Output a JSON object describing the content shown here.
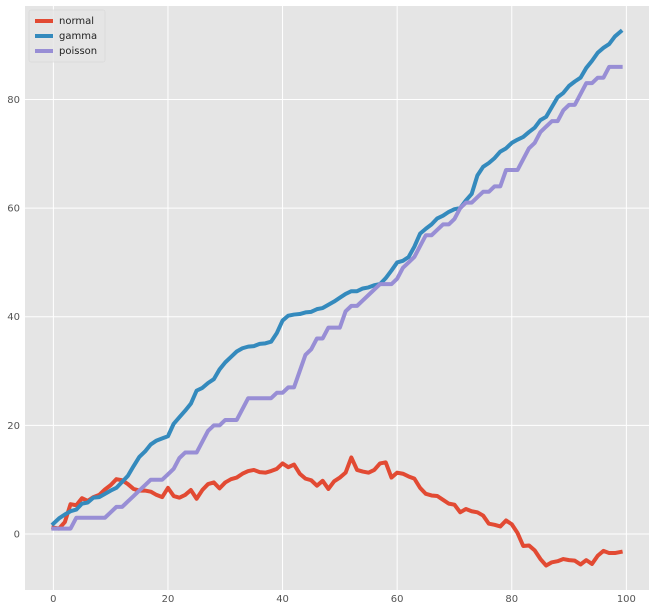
{
  "chart_data": {
    "type": "line",
    "title": "",
    "xlabel": "",
    "ylabel": "",
    "xlim": [
      -4.95,
      103.95
    ],
    "ylim": [
      -10.3,
      97.2
    ],
    "xticks": [
      0,
      20,
      40,
      60,
      80,
      100
    ],
    "yticks": [
      0,
      20,
      40,
      60,
      80
    ],
    "grid": true,
    "legend_position": "top-left",
    "x": [
      0,
      1,
      2,
      3,
      4,
      5,
      6,
      7,
      8,
      9,
      10,
      11,
      12,
      13,
      14,
      15,
      16,
      17,
      18,
      19,
      20,
      21,
      22,
      23,
      24,
      25,
      26,
      27,
      28,
      29,
      30,
      31,
      32,
      33,
      34,
      35,
      36,
      37,
      38,
      39,
      40,
      41,
      42,
      43,
      44,
      45,
      46,
      47,
      48,
      49,
      50,
      51,
      52,
      53,
      54,
      55,
      56,
      57,
      58,
      59,
      60,
      61,
      62,
      63,
      64,
      65,
      66,
      67,
      68,
      69,
      70,
      71,
      72,
      73,
      74,
      75,
      76,
      77,
      78,
      79,
      80,
      81,
      82,
      83,
      84,
      85,
      86,
      87,
      88,
      89,
      90,
      91,
      92,
      93,
      94,
      95,
      96,
      97,
      98,
      99
    ],
    "series": [
      {
        "name": "normal",
        "color": "#E24A33",
        "values": [
          1.2,
          1.0,
          2.2,
          5.5,
          5.3,
          6.6,
          6.1,
          6.8,
          7.2,
          8.2,
          9.0,
          10.1,
          9.9,
          9.2,
          8.3,
          8.0,
          8.0,
          7.8,
          7.2,
          6.8,
          8.5,
          7.0,
          6.7,
          7.2,
          8.1,
          6.5,
          8.1,
          9.2,
          9.5,
          8.4,
          9.5,
          10.1,
          10.4,
          11.1,
          11.6,
          11.8,
          11.4,
          11.3,
          11.6,
          12.0,
          13.0,
          12.3,
          12.8,
          11.1,
          10.2,
          9.9,
          8.9,
          9.8,
          8.3,
          9.7,
          10.4,
          11.3,
          14.1,
          11.8,
          11.5,
          11.3,
          11.8,
          13.0,
          13.2,
          10.4,
          11.3,
          11.1,
          10.6,
          10.2,
          8.5,
          7.4,
          7.1,
          7.0,
          6.3,
          5.6,
          5.4,
          4.0,
          4.6,
          4.2,
          4.0,
          3.4,
          1.9,
          1.7,
          1.4,
          2.5,
          1.8,
          0.2,
          -2.2,
          -2.1,
          -3.0,
          -4.6,
          -5.8,
          -5.2,
          -5.0,
          -4.6,
          -4.8,
          -4.9,
          -5.6,
          -4.8,
          -5.5,
          -4.0,
          -3.1,
          -3.5,
          -3.5,
          -3.3
        ]
      },
      {
        "name": "gamma",
        "color": "#348ABD",
        "values": [
          1.9,
          2.9,
          3.6,
          4.2,
          4.5,
          5.6,
          5.8,
          6.7,
          6.8,
          7.4,
          8.0,
          8.5,
          9.6,
          10.7,
          12.5,
          14.2,
          15.2,
          16.5,
          17.2,
          17.6,
          18.0,
          20.3,
          21.5,
          22.7,
          24.0,
          26.4,
          26.9,
          27.8,
          28.5,
          30.3,
          31.6,
          32.6,
          33.6,
          34.2,
          34.5,
          34.6,
          35.0,
          35.1,
          35.4,
          37.0,
          39.3,
          40.2,
          40.4,
          40.5,
          40.8,
          40.9,
          41.4,
          41.6,
          42.2,
          42.8,
          43.5,
          44.2,
          44.7,
          44.7,
          45.2,
          45.4,
          45.8,
          46.0,
          47.1,
          48.5,
          50.0,
          50.3,
          51.0,
          52.9,
          55.3,
          56.2,
          57.0,
          58.1,
          58.6,
          59.3,
          59.8,
          60.0,
          61.4,
          62.6,
          66.0,
          67.6,
          68.3,
          69.2,
          70.4,
          71.0,
          72.0,
          72.6,
          73.1,
          74.0,
          74.8,
          76.2,
          76.8,
          78.6,
          80.4,
          81.2,
          82.5,
          83.3,
          84.0,
          85.8,
          87.1,
          88.6,
          89.5,
          90.2,
          91.6,
          92.5
        ]
      },
      {
        "name": "poisson",
        "color": "#988ED5",
        "values": [
          1,
          1,
          1,
          1,
          3,
          3,
          3,
          3,
          3,
          3,
          4,
          5,
          5,
          6,
          7,
          8,
          9,
          10,
          10,
          10,
          11,
          12,
          14,
          15,
          15,
          15,
          17,
          19,
          20,
          20,
          21,
          21,
          21,
          23,
          25,
          25,
          25,
          25,
          25,
          26,
          26,
          27,
          27,
          30,
          33,
          34,
          36,
          36,
          38,
          38,
          38,
          41,
          42,
          42,
          43,
          44,
          45,
          46,
          46,
          46,
          47,
          49,
          50,
          51,
          53,
          55,
          55,
          56,
          57,
          57,
          58,
          60,
          61,
          61,
          62,
          63,
          63,
          64,
          64,
          67,
          67,
          67,
          69,
          71,
          72,
          74,
          75,
          76,
          76,
          78,
          79,
          79,
          81,
          83,
          83,
          84,
          84,
          86,
          86,
          86
        ]
      }
    ]
  }
}
